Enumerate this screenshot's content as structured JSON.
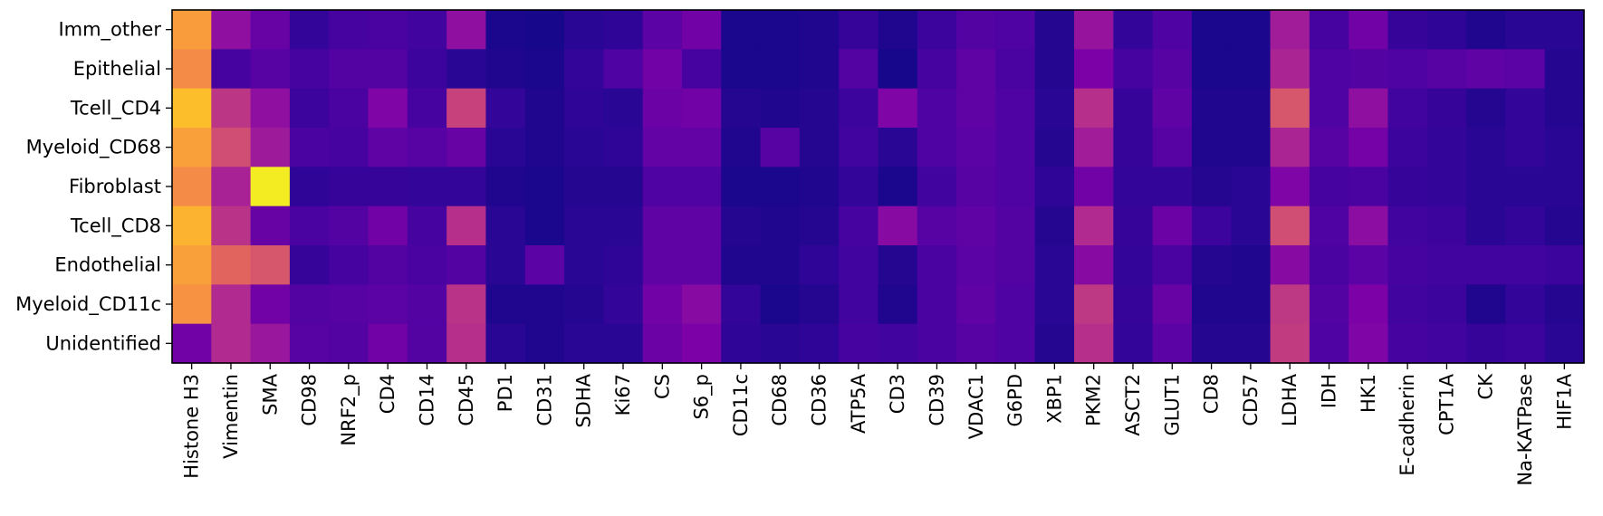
{
  "chart_data": {
    "type": "heatmap",
    "rows": [
      "Imm_other",
      "Epithelial",
      "Tcell_CD4",
      "Myeloid_CD68",
      "Fibroblast",
      "Tcell_CD8",
      "Endothelial",
      "Myeloid_CD11c",
      "Unidentified"
    ],
    "columns": [
      "Histone H3",
      "Vimentin",
      "SMA",
      "CD98",
      "NRF2_p",
      "CD4",
      "CD14",
      "CD45",
      "PD1",
      "CD31",
      "SDHA",
      "Ki67",
      "CS",
      "S6_p",
      "CD11c",
      "CD68",
      "CD36",
      "ATP5A",
      "CD3",
      "CD39",
      "VDAC1",
      "G6PD",
      "XBP1",
      "PKM2",
      "ASCT2",
      "GLUT1",
      "CD8",
      "CD57",
      "LDHA",
      "IDH",
      "HK1",
      "E-cadherin",
      "CPT1A",
      "CK",
      "Na-KATPase",
      "HIF1A"
    ],
    "values": [
      [
        0.77,
        0.3,
        0.2,
        0.08,
        0.12,
        0.13,
        0.11,
        0.3,
        0.03,
        0.02,
        0.06,
        0.07,
        0.17,
        0.22,
        0.03,
        0.03,
        0.04,
        0.09,
        0.04,
        0.1,
        0.15,
        0.14,
        0.05,
        0.32,
        0.08,
        0.14,
        0.03,
        0.03,
        0.35,
        0.12,
        0.22,
        0.09,
        0.07,
        0.04,
        0.06,
        0.06
      ],
      [
        0.72,
        0.12,
        0.16,
        0.12,
        0.15,
        0.15,
        0.1,
        0.06,
        0.04,
        0.03,
        0.08,
        0.14,
        0.22,
        0.12,
        0.03,
        0.03,
        0.04,
        0.15,
        0.02,
        0.12,
        0.18,
        0.13,
        0.05,
        0.25,
        0.12,
        0.16,
        0.03,
        0.03,
        0.38,
        0.14,
        0.15,
        0.14,
        0.16,
        0.18,
        0.17,
        0.05
      ],
      [
        0.86,
        0.44,
        0.3,
        0.1,
        0.13,
        0.26,
        0.12,
        0.48,
        0.08,
        0.04,
        0.07,
        0.06,
        0.21,
        0.22,
        0.05,
        0.04,
        0.05,
        0.1,
        0.26,
        0.14,
        0.18,
        0.14,
        0.06,
        0.42,
        0.09,
        0.18,
        0.04,
        0.04,
        0.55,
        0.14,
        0.3,
        0.11,
        0.09,
        0.05,
        0.08,
        0.05
      ],
      [
        0.78,
        0.52,
        0.34,
        0.13,
        0.12,
        0.18,
        0.16,
        0.2,
        0.06,
        0.04,
        0.06,
        0.07,
        0.19,
        0.19,
        0.04,
        0.16,
        0.05,
        0.11,
        0.06,
        0.14,
        0.17,
        0.14,
        0.05,
        0.35,
        0.09,
        0.16,
        0.04,
        0.04,
        0.38,
        0.16,
        0.23,
        0.1,
        0.08,
        0.06,
        0.08,
        0.06
      ],
      [
        0.72,
        0.37,
        0.97,
        0.07,
        0.09,
        0.09,
        0.08,
        0.08,
        0.04,
        0.03,
        0.05,
        0.05,
        0.14,
        0.14,
        0.03,
        0.03,
        0.04,
        0.08,
        0.03,
        0.11,
        0.16,
        0.14,
        0.07,
        0.22,
        0.08,
        0.08,
        0.05,
        0.06,
        0.26,
        0.12,
        0.13,
        0.09,
        0.08,
        0.06,
        0.06,
        0.06
      ],
      [
        0.83,
        0.43,
        0.2,
        0.13,
        0.15,
        0.22,
        0.12,
        0.42,
        0.06,
        0.03,
        0.06,
        0.06,
        0.18,
        0.18,
        0.05,
        0.04,
        0.05,
        0.12,
        0.28,
        0.16,
        0.18,
        0.15,
        0.05,
        0.4,
        0.09,
        0.21,
        0.1,
        0.06,
        0.52,
        0.14,
        0.29,
        0.11,
        0.1,
        0.06,
        0.08,
        0.05
      ],
      [
        0.78,
        0.6,
        0.55,
        0.09,
        0.12,
        0.15,
        0.13,
        0.15,
        0.06,
        0.17,
        0.06,
        0.07,
        0.18,
        0.18,
        0.04,
        0.04,
        0.07,
        0.11,
        0.05,
        0.13,
        0.17,
        0.15,
        0.06,
        0.28,
        0.08,
        0.13,
        0.05,
        0.04,
        0.28,
        0.13,
        0.17,
        0.12,
        0.11,
        0.11,
        0.11,
        0.1
      ],
      [
        0.74,
        0.4,
        0.22,
        0.15,
        0.16,
        0.17,
        0.15,
        0.43,
        0.04,
        0.04,
        0.05,
        0.08,
        0.22,
        0.28,
        0.08,
        0.03,
        0.05,
        0.11,
        0.04,
        0.13,
        0.18,
        0.14,
        0.06,
        0.45,
        0.09,
        0.2,
        0.04,
        0.04,
        0.45,
        0.15,
        0.25,
        0.11,
        0.1,
        0.04,
        0.08,
        0.05
      ],
      [
        0.22,
        0.4,
        0.33,
        0.16,
        0.15,
        0.22,
        0.15,
        0.42,
        0.06,
        0.04,
        0.06,
        0.06,
        0.21,
        0.25,
        0.07,
        0.06,
        0.07,
        0.12,
        0.11,
        0.13,
        0.16,
        0.14,
        0.05,
        0.42,
        0.08,
        0.17,
        0.05,
        0.05,
        0.46,
        0.14,
        0.26,
        0.12,
        0.11,
        0.09,
        0.1,
        0.06
      ]
    ],
    "vmin": 0,
    "vmax": 1,
    "colormap": "plasma",
    "title": "",
    "xlabel": "",
    "ylabel": "",
    "grid": false,
    "legend": "none"
  }
}
